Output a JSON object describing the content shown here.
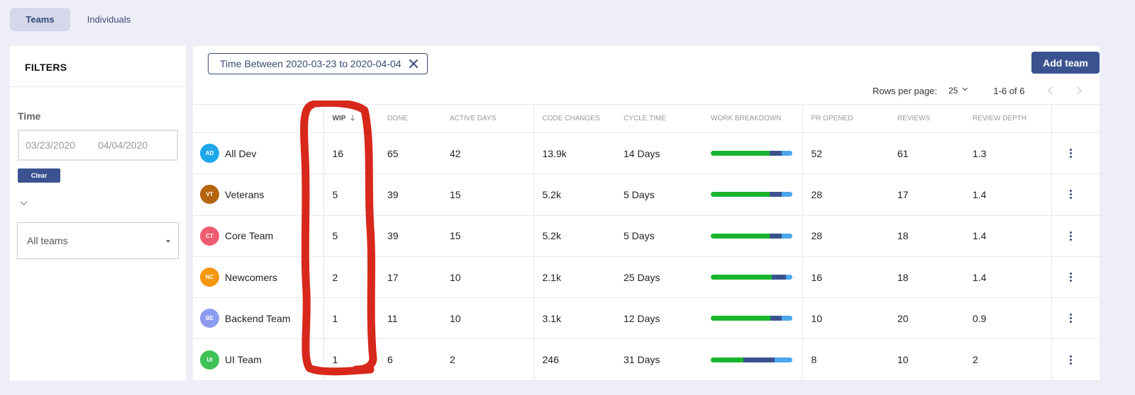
{
  "tabs": [
    {
      "label": "Teams",
      "active": true
    },
    {
      "label": "Individuals",
      "active": false
    }
  ],
  "sidebar": {
    "title": "FILTERS",
    "time_label": "Time",
    "date_from": "03/23/2020",
    "date_to": "04/04/2020",
    "clear_label": "Clear",
    "team_select_value": "All teams"
  },
  "filter_chip": {
    "label": "Time Between 2020-03-23 to 2020-04-04"
  },
  "add_team_label": "Add team",
  "pagination": {
    "rows_label": "Rows per page:",
    "rows_value": "25",
    "range": "1-6 of 6"
  },
  "columns": {
    "wip": "WIP",
    "done": "DONE",
    "active_days": "ACTIVE DAYS",
    "code_changes": "CODE CHANGES",
    "cycle_time": "CYCLE TIME",
    "work_breakdown": "WORK BREAKDOWN",
    "pr_opened": "PR OPENED",
    "reviews": "REVIEWS",
    "review_depth": "REVIEW DEPTH"
  },
  "colors": {
    "accent": "#3a5390",
    "annotation": "#d8281c",
    "bar_green": "#1ab52f",
    "bar_navy": "#3a5390",
    "bar_blue": "#4aa7ec"
  },
  "rows": [
    {
      "initials": "AD",
      "name": "All Dev",
      "color": "#1ea7ea",
      "wip": "16",
      "done": "65",
      "active_days": "42",
      "code_changes": "13.9k",
      "cycle_time": "14 Days",
      "breakdown": [
        0.72,
        0.15,
        0.13
      ],
      "pr_opened": "52",
      "reviews": "61",
      "review_depth": "1.3"
    },
    {
      "initials": "VT",
      "name": "Veterans",
      "color": "#b5650e",
      "wip": "5",
      "done": "39",
      "active_days": "15",
      "code_changes": "5.2k",
      "cycle_time": "5 Days",
      "breakdown": [
        0.72,
        0.15,
        0.13
      ],
      "pr_opened": "28",
      "reviews": "17",
      "review_depth": "1.4"
    },
    {
      "initials": "CT",
      "name": "Core Team",
      "color": "#ef5b70",
      "wip": "5",
      "done": "39",
      "active_days": "15",
      "code_changes": "5.2k",
      "cycle_time": "5 Days",
      "breakdown": [
        0.72,
        0.15,
        0.13
      ],
      "pr_opened": "28",
      "reviews": "18",
      "review_depth": "1.4"
    },
    {
      "initials": "NC",
      "name": "Newcomers",
      "color": "#f5960b",
      "wip": "2",
      "done": "17",
      "active_days": "10",
      "code_changes": "2.1k",
      "cycle_time": "25 Days",
      "breakdown": [
        0.75,
        0.17,
        0.08
      ],
      "pr_opened": "16",
      "reviews": "18",
      "review_depth": "1.4"
    },
    {
      "initials": "BE",
      "name": "Backend Team",
      "color": "#8d9cf2",
      "wip": "1",
      "done": "11",
      "active_days": "10",
      "code_changes": "3.1k",
      "cycle_time": "12 Days",
      "breakdown": [
        0.73,
        0.14,
        0.13
      ],
      "pr_opened": "10",
      "reviews": "20",
      "review_depth": "0.9"
    },
    {
      "initials": "UI",
      "name": "UI Team",
      "color": "#3ec255",
      "wip": "1",
      "done": "6",
      "active_days": "2",
      "code_changes": "246",
      "cycle_time": "31 Days",
      "breakdown": [
        0.4,
        0.38,
        0.22
      ],
      "pr_opened": "8",
      "reviews": "10",
      "review_depth": "2"
    }
  ]
}
